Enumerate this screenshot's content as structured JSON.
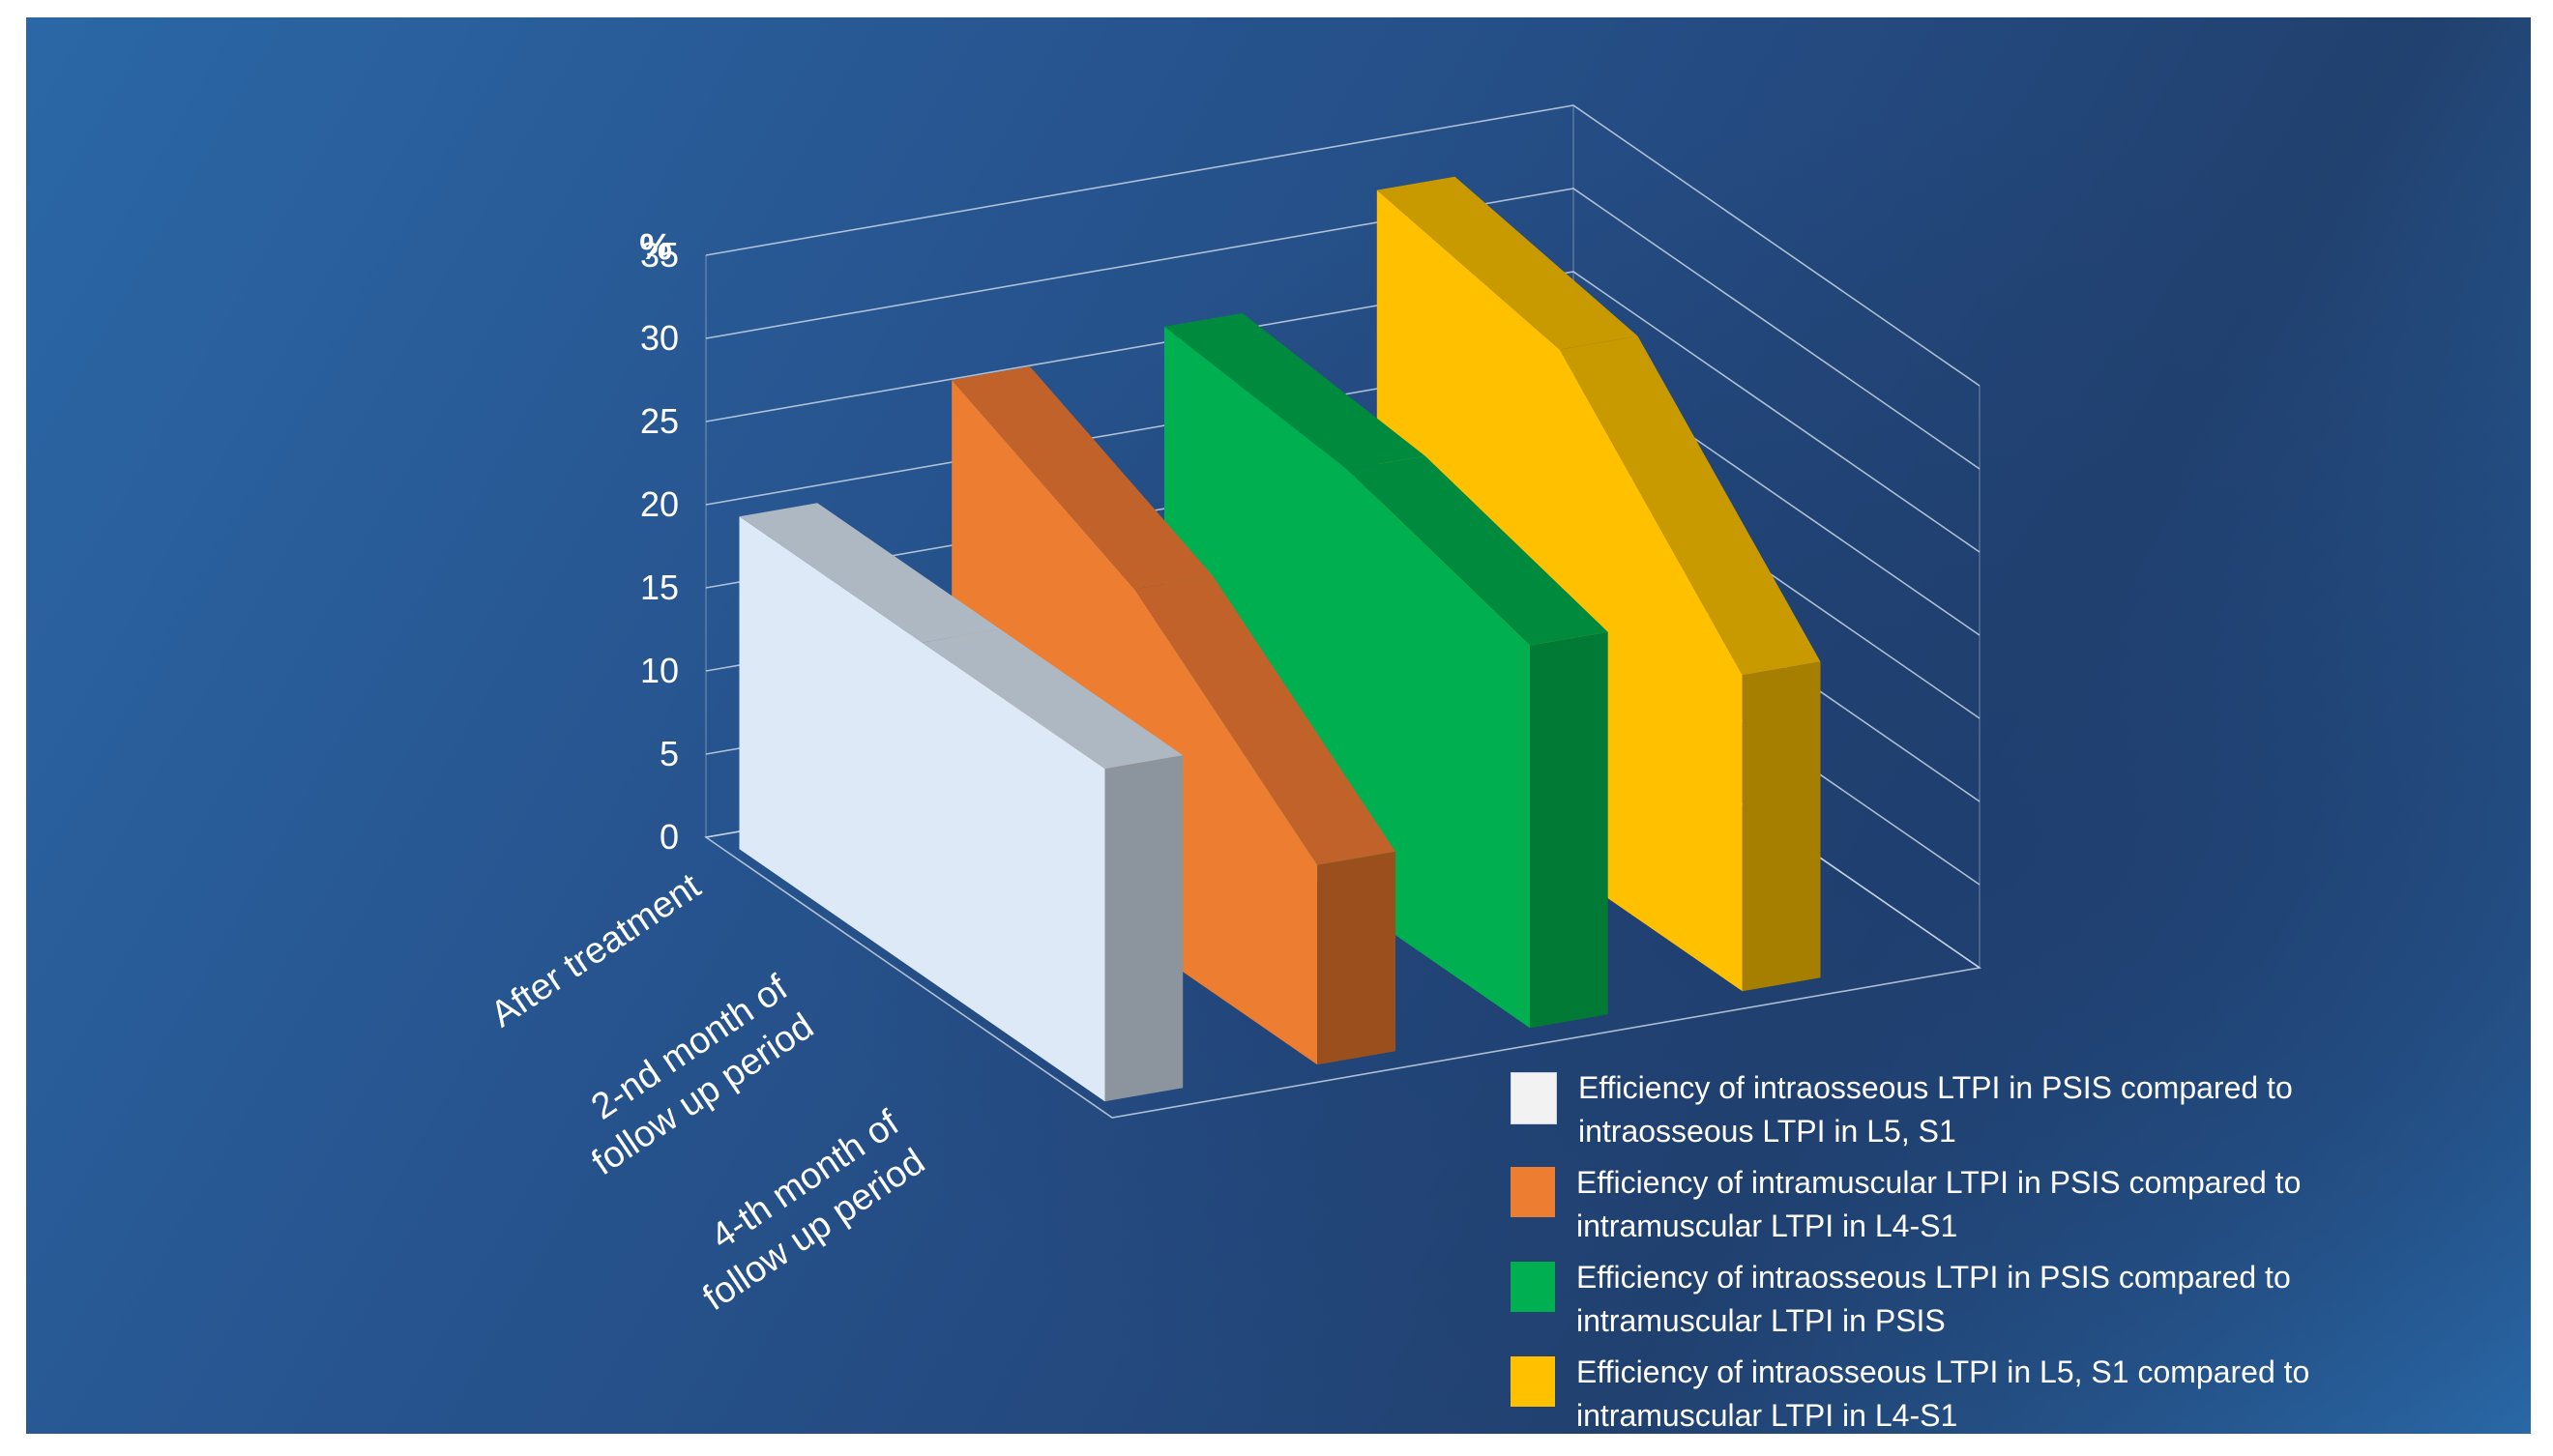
{
  "chart_data": {
    "type": "bar",
    "ylabel": "%",
    "ylim": [
      0,
      35
    ],
    "yticks": [
      0,
      5,
      10,
      15,
      20,
      25,
      30,
      35
    ],
    "categories": [
      "After treatment",
      "2-nd month of follow up period",
      "4-th month of follow up period"
    ],
    "series": [
      {
        "name": "Efficiency of intraosseous LTPI in PSIS compared to intraosseous LTPI in L5, S1",
        "color": "#dde9f7",
        "values": [
          20,
          20,
          20
        ]
      },
      {
        "name": "Efficiency of intramuscular LTPI in PSIS compared to intramuscular LTPI in L4-S1",
        "color": "#ed7d31",
        "values": [
          26,
          21,
          12
        ]
      },
      {
        "name": "Efficiency of intraosseous LTPI in PSIS compared to intramuscular LTPI in PSIS",
        "color": "#00b050",
        "values": [
          27,
          26,
          23
        ]
      },
      {
        "name": "Efficiency of intraosseous LTPI in L5, S1 compared to intramuscular LTPI in L4-S1",
        "color": "#ffc000",
        "values": [
          33,
          31,
          19
        ]
      }
    ],
    "grid": true,
    "legend": "bottom-right",
    "chart_style": "3D"
  }
}
